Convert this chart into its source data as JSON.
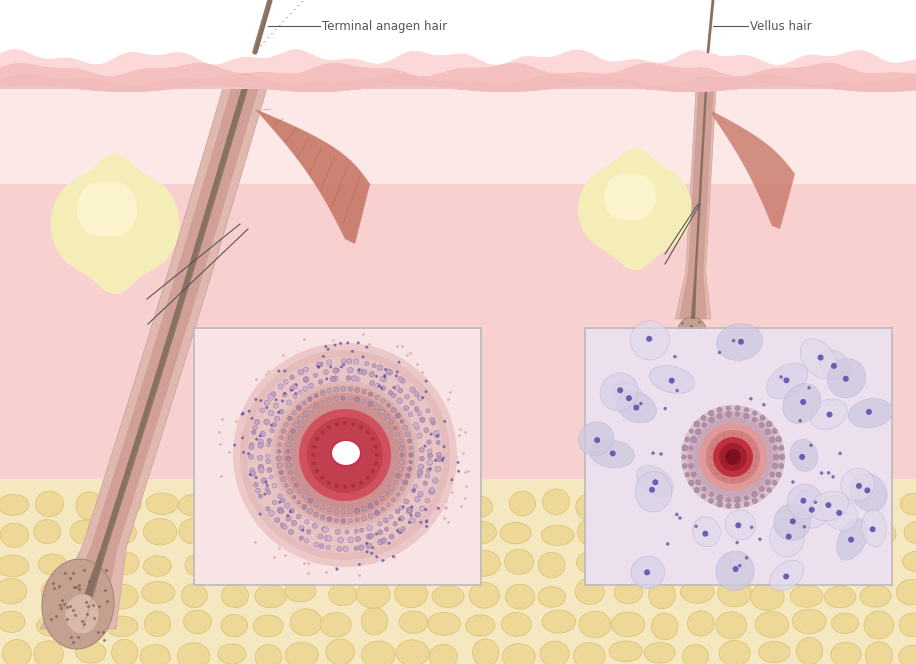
{
  "fig_width": 9.16,
  "fig_height": 6.64,
  "dpi": 100,
  "label_terminal": "Terminal anagen hair",
  "label_vellus": "Vellus hair",
  "label_color": "#555555",
  "label_fontsize": 8.5,
  "colors": {
    "white": "#FFFFFF",
    "skin_light": "#FDE8E8",
    "skin_pink": "#F9D0D0",
    "skin_mid": "#F5C5C5",
    "epidermis": "#F2BCBC",
    "stratum": "#F8D8D8",
    "fat_bg": "#F5E8C0",
    "fat_lobule": "#EED898",
    "fat_edge": "#D8C070",
    "sebaceous": "#F5EDB8",
    "sebaceous_hi": "#FAF3CC",
    "muscle": "#C87868",
    "muscle_dark": "#A86050",
    "follicle_outer": "#E0B8B0",
    "follicle_irs": "#D0A098",
    "hair_shaft": "#8A7060",
    "bulb_outer": "#C4A090",
    "bulb_inner": "#D8B8A8",
    "annotation_line": "#555555"
  }
}
